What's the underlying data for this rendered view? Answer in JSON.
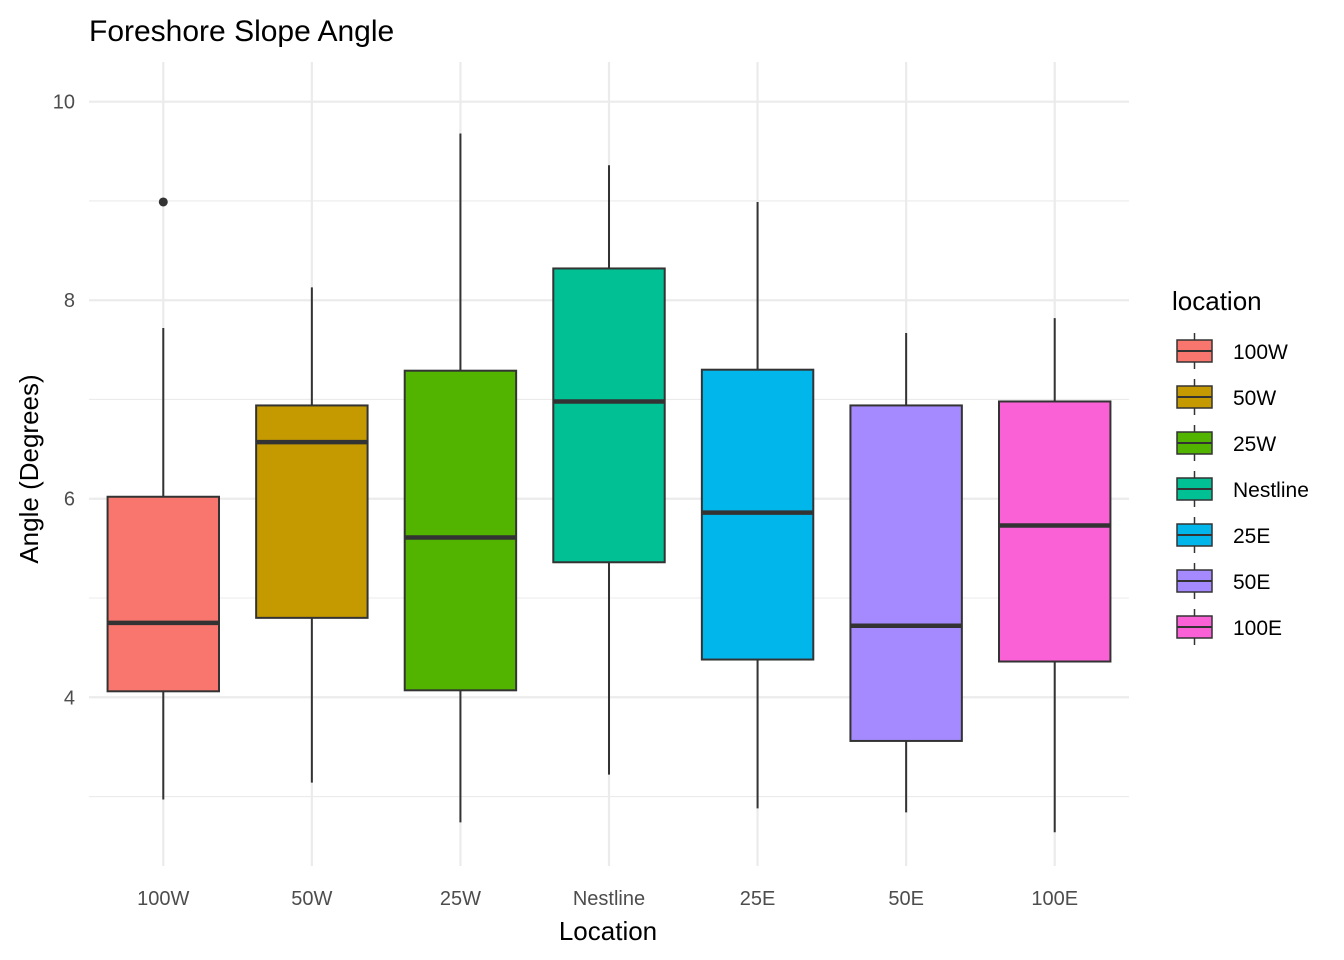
{
  "chart_data": {
    "type": "boxplot",
    "title": "Foreshore Slope Angle",
    "xlabel": "Location",
    "ylabel": "Angle (Degrees)",
    "ylim": [
      2.3,
      10.4
    ],
    "yticks": [
      "4",
      "6",
      "8",
      "10"
    ],
    "ytick_values": [
      4,
      6,
      8,
      10
    ],
    "minor_gridlines": [
      3,
      5,
      7,
      9
    ],
    "grid": true,
    "legend": {
      "title": "location",
      "position": "right"
    },
    "categories": [
      "100W",
      "50W",
      "25W",
      "Nestline",
      "25E",
      "50E",
      "100E"
    ],
    "series": [
      {
        "name": "100W",
        "color": "#F8766D",
        "whisker_low": 2.97,
        "q1": 4.06,
        "median": 4.75,
        "q3": 6.02,
        "whisker_high": 7.72,
        "outliers": [
          8.99
        ]
      },
      {
        "name": "50W",
        "color": "#C49A00",
        "whisker_low": 3.14,
        "q1": 4.8,
        "median": 6.57,
        "q3": 6.94,
        "whisker_high": 8.13,
        "outliers": []
      },
      {
        "name": "25W",
        "color": "#53B400",
        "whisker_low": 2.74,
        "q1": 4.07,
        "median": 5.61,
        "q3": 7.29,
        "whisker_high": 9.68,
        "outliers": []
      },
      {
        "name": "Nestline",
        "color": "#00C094",
        "whisker_low": 3.22,
        "q1": 5.36,
        "median": 6.98,
        "q3": 8.32,
        "whisker_high": 9.36,
        "outliers": []
      },
      {
        "name": "25E",
        "color": "#00B6EB",
        "whisker_low": 2.88,
        "q1": 4.38,
        "median": 5.86,
        "q3": 7.3,
        "whisker_high": 8.99,
        "outliers": []
      },
      {
        "name": "50E",
        "color": "#A58AFF",
        "whisker_low": 2.84,
        "q1": 3.56,
        "median": 4.72,
        "q3": 6.94,
        "whisker_high": 7.67,
        "outliers": []
      },
      {
        "name": "100E",
        "color": "#FB61D7",
        "whisker_low": 2.64,
        "q1": 4.36,
        "median": 5.73,
        "q3": 6.98,
        "whisker_high": 7.82,
        "outliers": []
      }
    ]
  }
}
